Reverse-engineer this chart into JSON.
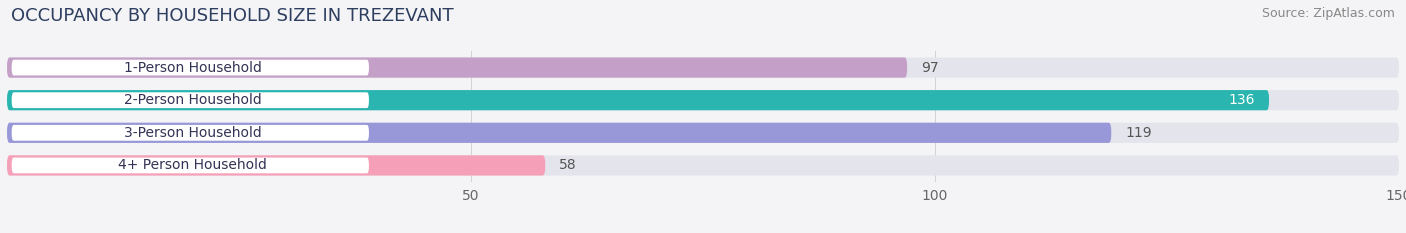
{
  "title": "OCCUPANCY BY HOUSEHOLD SIZE IN TREZEVANT",
  "source": "Source: ZipAtlas.com",
  "categories": [
    "1-Person Household",
    "2-Person Household",
    "3-Person Household",
    "4+ Person Household"
  ],
  "values": [
    97,
    136,
    119,
    58
  ],
  "bar_colors": [
    "#c4a0c8",
    "#2ab5b0",
    "#9898d8",
    "#f5a0b8"
  ],
  "xlim": [
    0,
    150
  ],
  "xticks": [
    50,
    100,
    150
  ],
  "background_color": "#f4f4f6",
  "bar_bg_color": "#e4e4ec",
  "title_color": "#2d3e5f",
  "title_fontsize": 13,
  "source_fontsize": 9,
  "label_fontsize": 10,
  "value_fontsize": 10,
  "bar_height": 0.62,
  "bar_gap": 1.0
}
